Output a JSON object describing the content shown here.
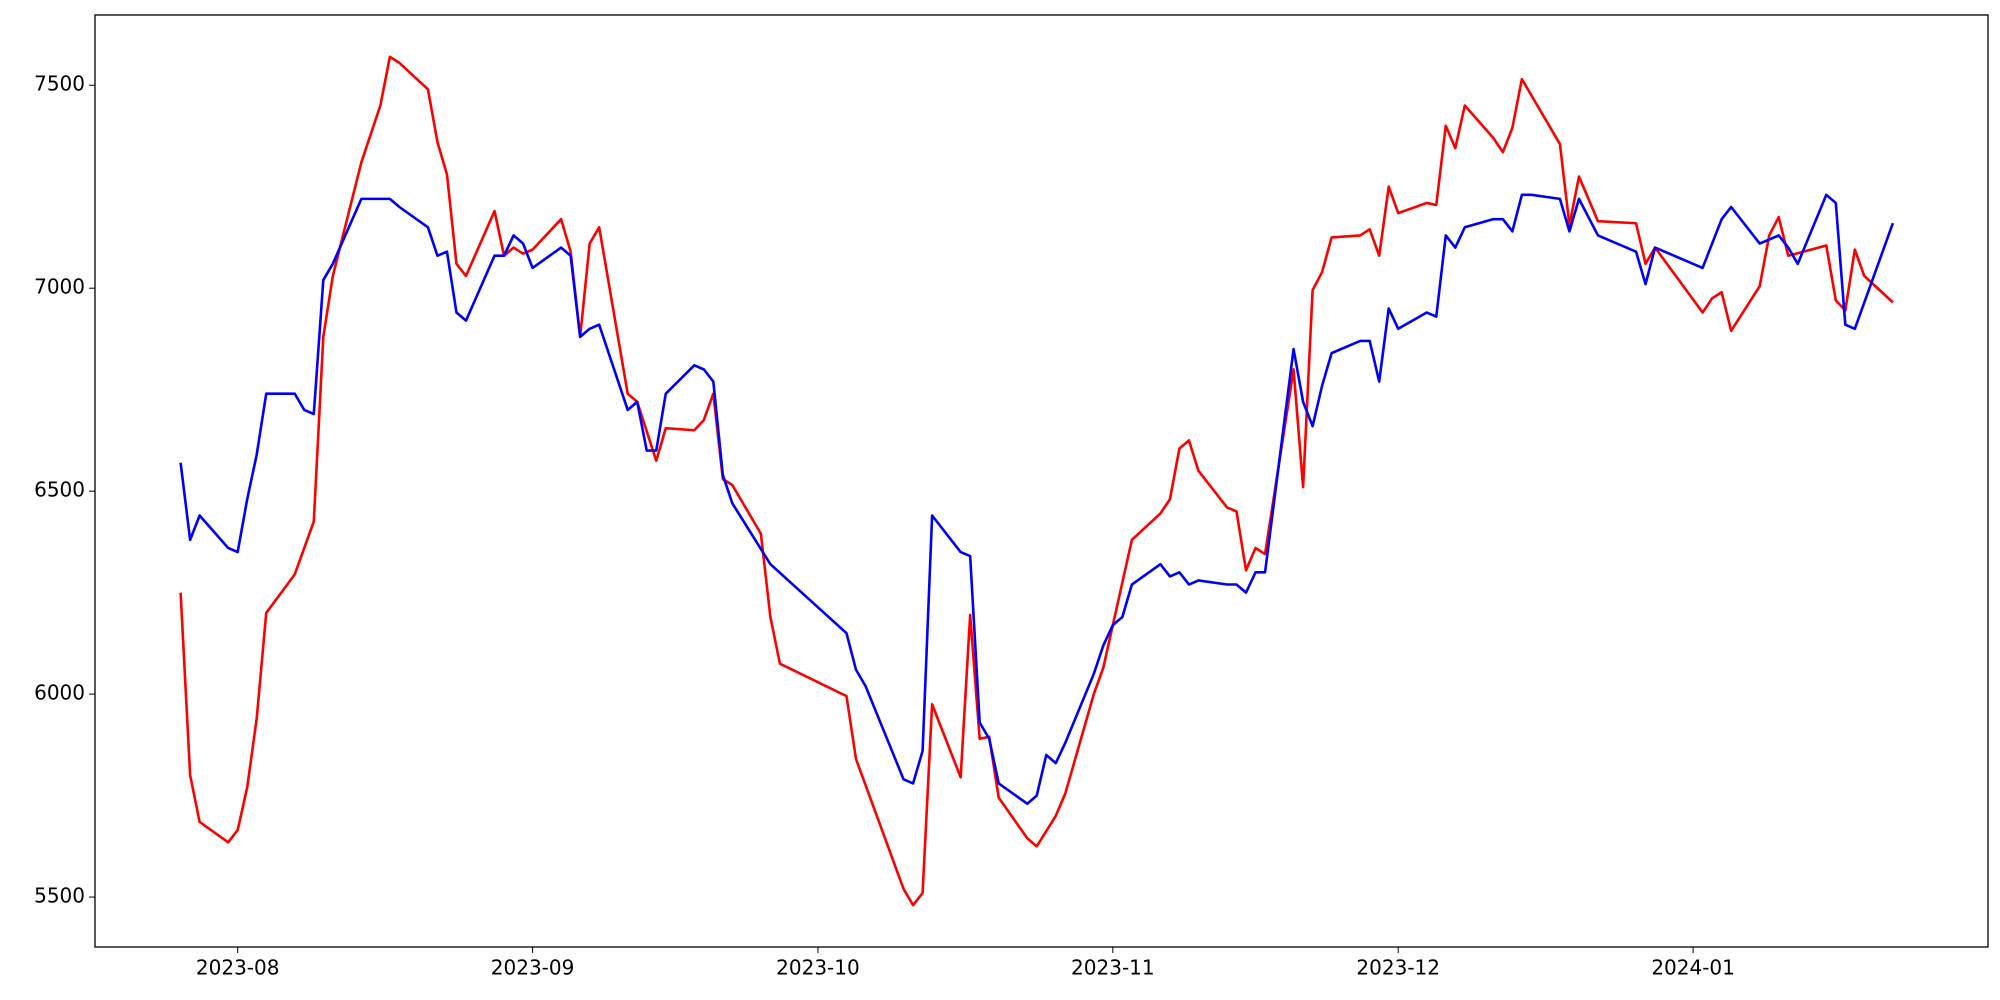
{
  "chart_data": {
    "type": "line",
    "xlim": [
      -15,
      184
    ],
    "xticks": [
      {
        "value": 0,
        "label": "2023-08"
      },
      {
        "value": 31,
        "label": "2023-09"
      },
      {
        "value": 61,
        "label": "2023-10"
      },
      {
        "value": 92,
        "label": "2023-11"
      },
      {
        "value": 122,
        "label": "2023-12"
      },
      {
        "value": 153,
        "label": "2024-01"
      }
    ],
    "ylim": [
      5377,
      7673
    ],
    "yticks": [
      5500,
      6000,
      6500,
      7000,
      7500
    ],
    "grid": false,
    "series": [
      {
        "color": "#ff0000",
        "x": [
          -6,
          -5,
          -4,
          -1,
          0,
          1,
          2,
          3,
          6,
          8,
          9,
          10,
          13,
          15,
          16,
          17,
          20,
          21,
          22,
          23,
          24,
          27,
          28,
          29,
          30,
          31,
          34,
          35,
          36,
          37,
          38,
          41,
          42,
          44,
          45,
          48,
          49,
          50,
          51,
          52,
          55,
          56,
          57,
          64,
          65,
          70,
          71,
          72,
          73,
          76,
          77,
          78,
          79,
          80,
          83,
          84,
          86,
          87,
          90,
          91,
          94,
          97,
          98,
          99,
          100,
          101,
          104,
          105,
          106,
          107,
          108,
          111,
          112,
          113,
          114,
          115,
          118,
          119,
          120,
          121,
          122,
          125,
          126,
          127,
          128,
          129,
          132,
          133,
          134,
          135,
          136,
          139,
          140,
          141,
          143,
          147,
          148,
          149,
          154,
          155,
          156,
          157,
          160,
          161,
          162,
          163,
          167,
          168,
          169,
          170,
          171,
          174
        ],
        "values": [
          6250,
          5800,
          5685,
          5635,
          5665,
          5770,
          5940,
          6200,
          6295,
          6425,
          6880,
          7030,
          7310,
          7450,
          7570,
          7555,
          7490,
          7360,
          7280,
          7060,
          7030,
          7190,
          7080,
          7100,
          7085,
          7095,
          7170,
          7090,
          6880,
          7110,
          7150,
          6740,
          6720,
          6575,
          6655,
          6650,
          6675,
          6740,
          6530,
          6515,
          6395,
          6190,
          6075,
          5995,
          5840,
          5520,
          5480,
          5510,
          5975,
          5795,
          6195,
          5890,
          5895,
          5745,
          5645,
          5625,
          5700,
          5755,
          6000,
          6065,
          6380,
          6445,
          6480,
          6605,
          6625,
          6550,
          6460,
          6450,
          6305,
          6360,
          6345,
          6800,
          6510,
          6995,
          7040,
          7125,
          7130,
          7145,
          7080,
          7250,
          7185,
          7210,
          7205,
          7400,
          7345,
          7450,
          7370,
          7335,
          7395,
          7515,
          7475,
          7355,
          7155,
          7275,
          7165,
          7160,
          7060,
          7100,
          6940,
          6975,
          6990,
          6895,
          7005,
          7130,
          7175,
          7080,
          7105,
          6970,
          6945,
          7095,
          7030,
          6965
        ]
      },
      {
        "color": "#0000ff",
        "x": [
          -6,
          -5,
          -4,
          -1,
          0,
          1,
          2,
          3,
          6,
          7,
          8,
          9,
          10,
          13,
          16,
          17,
          20,
          21,
          22,
          23,
          24,
          27,
          28,
          29,
          30,
          31,
          34,
          35,
          36,
          37,
          38,
          41,
          42,
          43,
          44,
          45,
          48,
          49,
          50,
          51,
          52,
          56,
          64,
          65,
          66,
          70,
          71,
          72,
          73,
          76,
          77,
          78,
          79,
          80,
          83,
          84,
          85,
          86,
          87,
          90,
          91,
          92,
          93,
          94,
          97,
          98,
          99,
          100,
          101,
          104,
          105,
          106,
          107,
          108,
          111,
          112,
          113,
          114,
          115,
          118,
          119,
          120,
          121,
          122,
          125,
          126,
          127,
          128,
          129,
          132,
          133,
          134,
          135,
          136,
          139,
          140,
          141,
          143,
          147,
          148,
          149,
          154,
          156,
          157,
          160,
          162,
          163,
          164,
          167,
          168,
          169,
          170,
          174
        ],
        "values": [
          6570,
          6380,
          6440,
          6360,
          6350,
          6480,
          6590,
          6740,
          6740,
          6700,
          6690,
          7020,
          7060,
          7220,
          7220,
          7200,
          7150,
          7080,
          7090,
          6940,
          6920,
          7080,
          7080,
          7130,
          7110,
          7050,
          7100,
          7080,
          6880,
          6900,
          6910,
          6700,
          6720,
          6600,
          6600,
          6740,
          6810,
          6800,
          6770,
          6540,
          6470,
          6320,
          6150,
          6060,
          6020,
          5790,
          5780,
          5860,
          6440,
          6350,
          6340,
          5930,
          5890,
          5780,
          5730,
          5750,
          5850,
          5830,
          5880,
          6050,
          6120,
          6170,
          6190,
          6270,
          6320,
          6290,
          6300,
          6270,
          6280,
          6270,
          6270,
          6250,
          6300,
          6300,
          6850,
          6720,
          6660,
          6760,
          6840,
          6870,
          6870,
          6770,
          6950,
          6900,
          6940,
          6930,
          7130,
          7100,
          7150,
          7170,
          7170,
          7140,
          7230,
          7230,
          7220,
          7140,
          7220,
          7130,
          7090,
          7010,
          7100,
          7050,
          7170,
          7200,
          7110,
          7130,
          7100,
          7060,
          7230,
          7210,
          6910,
          6900,
          7160
        ]
      }
    ]
  }
}
